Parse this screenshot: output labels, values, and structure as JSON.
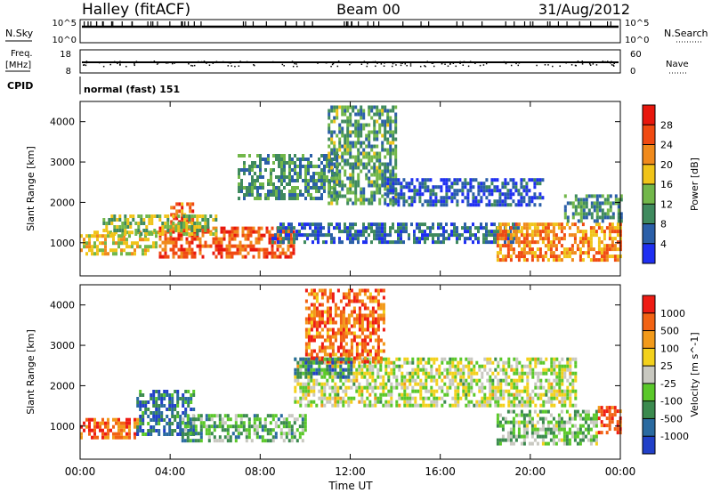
{
  "header": {
    "station": "Halley (fitACF)",
    "beam": "Beam 00",
    "date": "31/Aug/2012"
  },
  "strips": {
    "nsky_label": "N.Sky",
    "nsky_ticks": [
      "10^5",
      "10^0"
    ],
    "nsearch_label": "N.Search",
    "nsearch_ticks": [
      "10^5",
      "10^0"
    ],
    "freq_label": "Freq.",
    "freq_unit": "[MHz]",
    "freq_ticks": [
      "18",
      "8"
    ],
    "nave_label": "Nave",
    "nave_ticks": [
      "60",
      "0"
    ],
    "cpid_label": "CPID",
    "cpid_value": "normal (fast) 151"
  },
  "chart_data": [
    {
      "type": "heatmap",
      "title": "",
      "xlabel": "Time UT",
      "ylabel": "Slant Range [km]",
      "x_ticks": [
        "00:00",
        "04:00",
        "08:00",
        "12:00",
        "16:00",
        "20:00",
        "00:00"
      ],
      "xlim_hours": [
        0,
        24
      ],
      "y_ticks": [
        1000,
        2000,
        3000,
        4000
      ],
      "ylim": [
        180,
        4500
      ],
      "colorbar": {
        "label": "Power [dB]",
        "ticks": [
          4,
          8,
          12,
          16,
          20,
          24,
          28
        ],
        "range": [
          0,
          32
        ],
        "colors": [
          "#1f2ff2",
          "#2b5fa8",
          "#3f8a5e",
          "#72b74a",
          "#f0c419",
          "#f08a1c",
          "#f04a12",
          "#e8170d"
        ]
      },
      "regions": [
        {
          "t0": 0.0,
          "t1": 3.5,
          "r0": 700,
          "r1": 1300,
          "level": 0.55
        },
        {
          "t0": 3.5,
          "t1": 9.5,
          "r0": 650,
          "r1": 1400,
          "level": 0.8
        },
        {
          "t0": 4.0,
          "t1": 5.0,
          "r0": 1300,
          "r1": 2000,
          "level": 0.75
        },
        {
          "t0": 1.0,
          "t1": 6.0,
          "r0": 1200,
          "r1": 1700,
          "level": 0.45
        },
        {
          "t0": 8.5,
          "t1": 19.5,
          "r0": 1000,
          "r1": 1500,
          "level": 0.2
        },
        {
          "t0": 7.0,
          "t1": 11.5,
          "r0": 2100,
          "r1": 3200,
          "level": 0.3
        },
        {
          "t0": 11.0,
          "t1": 14.0,
          "r0": 2000,
          "r1": 4400,
          "level": 0.35
        },
        {
          "t0": 13.5,
          "t1": 20.5,
          "r0": 1950,
          "r1": 2600,
          "level": 0.15
        },
        {
          "t0": 18.5,
          "t1": 24.0,
          "r0": 600,
          "r1": 1500,
          "level": 0.7
        },
        {
          "t0": 21.5,
          "t1": 24.0,
          "r0": 1500,
          "r1": 2200,
          "level": 0.3
        }
      ]
    },
    {
      "type": "heatmap",
      "title": "",
      "xlabel": "Time UT",
      "ylabel": "Slant Range [km]",
      "x_ticks": [
        "00:00",
        "04:00",
        "08:00",
        "12:00",
        "16:00",
        "20:00",
        "00:00"
      ],
      "xlim_hours": [
        0,
        24
      ],
      "y_ticks": [
        1000,
        2000,
        3000,
        4000
      ],
      "ylim": [
        180,
        4500
      ],
      "colorbar": {
        "label": "Velocity [m s^-1]",
        "ticks": [
          1000,
          500,
          100,
          25,
          -25,
          -100,
          -500,
          -1000
        ],
        "colors": [
          "#2140c8",
          "#2a6aa0",
          "#3b8a4e",
          "#5ac82a",
          "#c8c8c0",
          "#f3d11c",
          "#f29a1a",
          "#f26314",
          "#ee1c14"
        ]
      },
      "regions": [
        {
          "t0": 0.0,
          "t1": 2.5,
          "r0": 700,
          "r1": 1200,
          "level": 0.85
        },
        {
          "t0": 2.5,
          "t1": 5.0,
          "r0": 800,
          "r1": 1900,
          "level": 0.2
        },
        {
          "t0": 4.5,
          "t1": 10.0,
          "r0": 600,
          "r1": 1300,
          "level": 0.35
        },
        {
          "t0": 9.5,
          "t1": 22.0,
          "r0": 1500,
          "r1": 2700,
          "level": 0.5
        },
        {
          "t0": 10.0,
          "t1": 13.5,
          "r0": 2600,
          "r1": 4400,
          "level": 0.82
        },
        {
          "t0": 9.5,
          "t1": 12.0,
          "r0": 2200,
          "r1": 2700,
          "level": 0.25
        },
        {
          "t0": 18.5,
          "t1": 23.0,
          "r0": 600,
          "r1": 1400,
          "level": 0.4
        },
        {
          "t0": 23.0,
          "t1": 24.0,
          "r0": 800,
          "r1": 1500,
          "level": 0.85
        }
      ]
    }
  ]
}
